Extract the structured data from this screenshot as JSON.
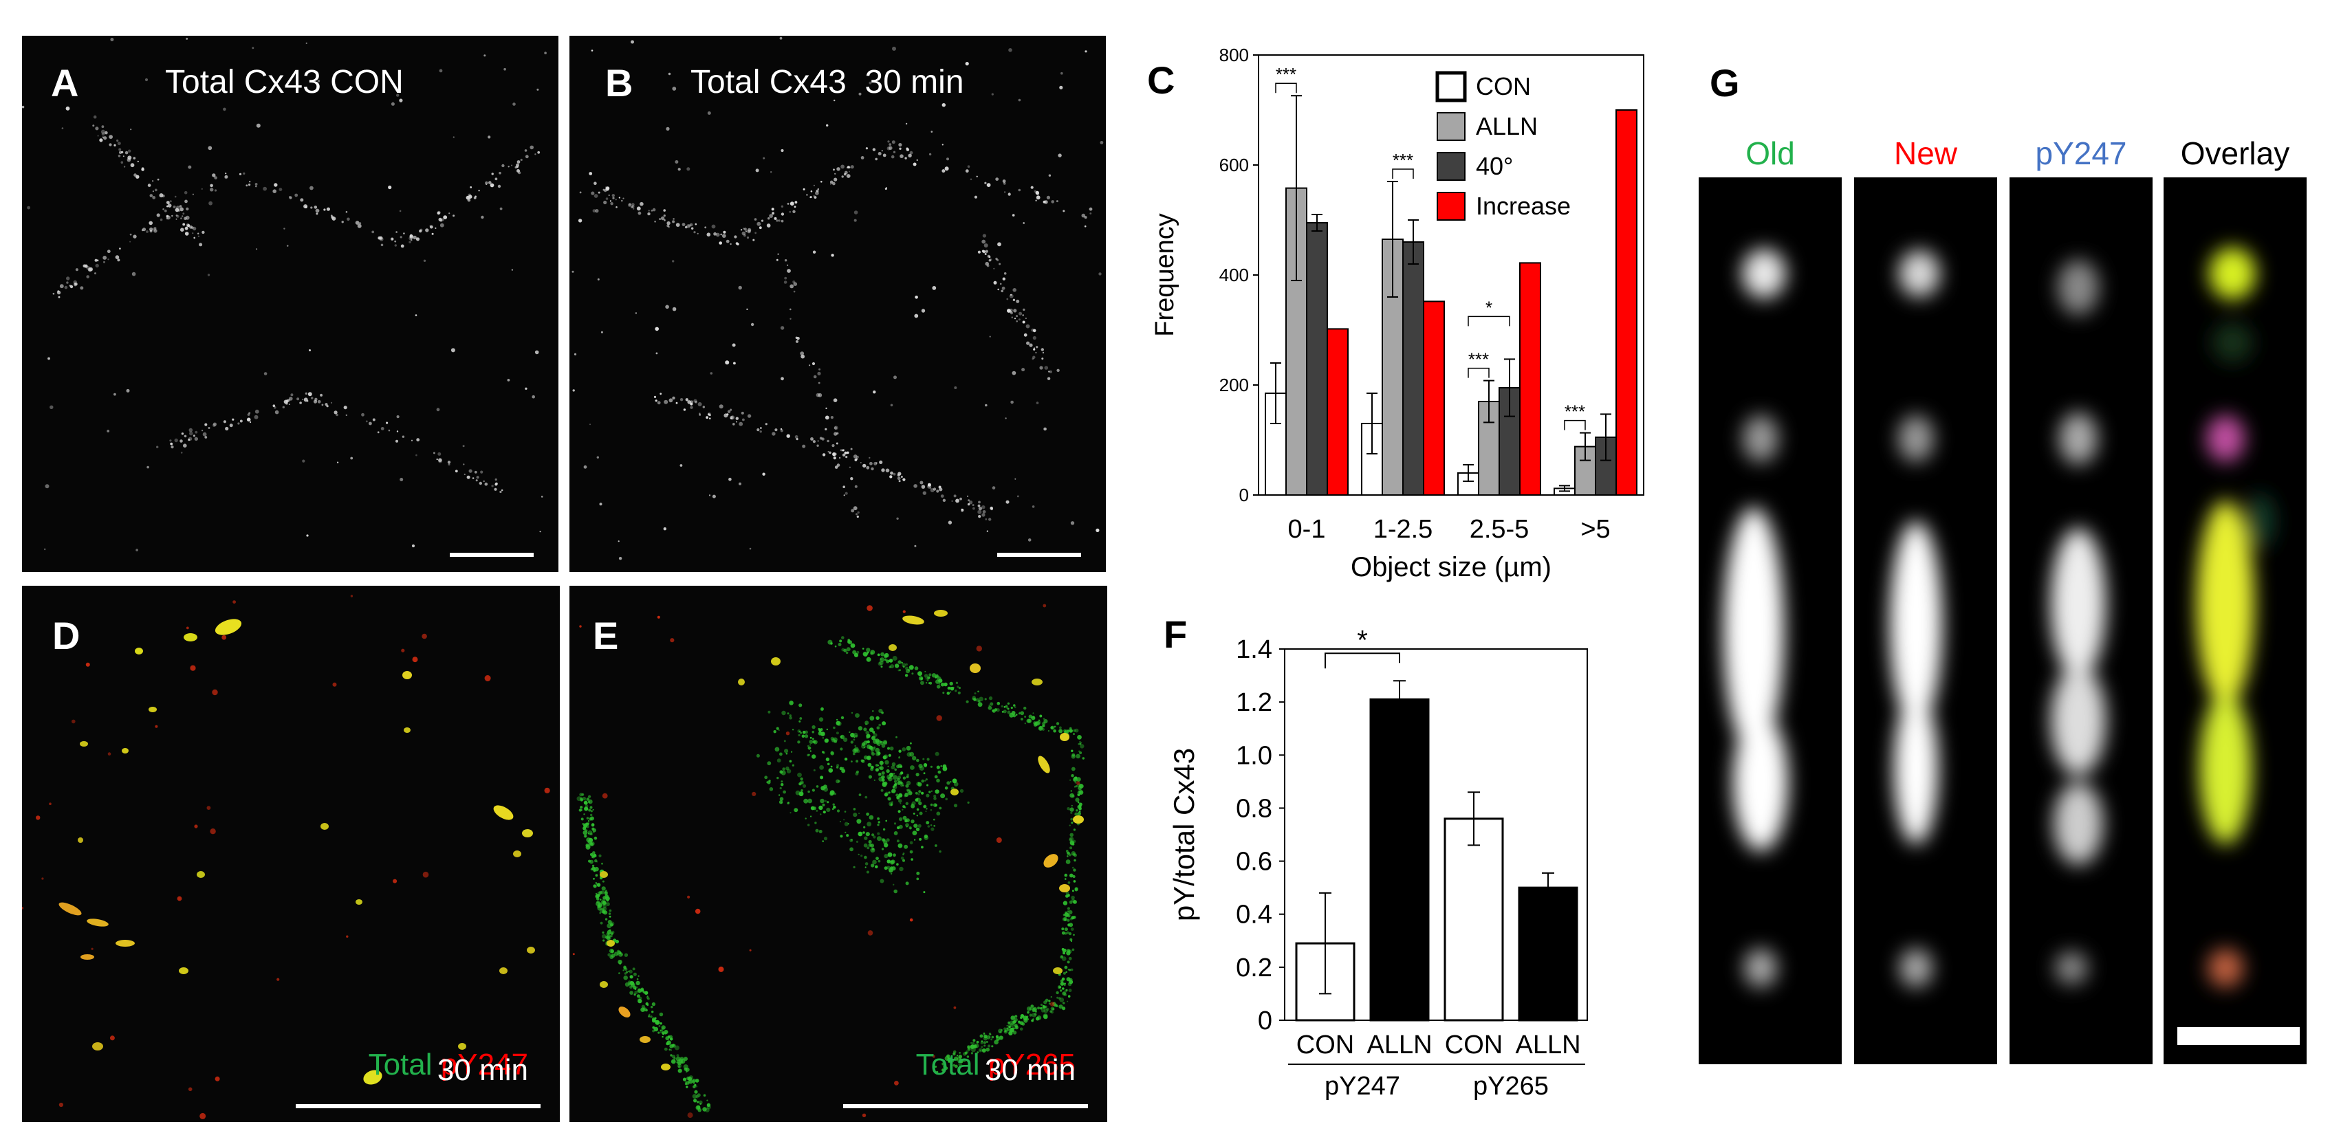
{
  "panels": {
    "A": {
      "letter": "A",
      "title": "Total Cx43 CON"
    },
    "B": {
      "letter": "B",
      "title": "Total Cx43  30 min"
    },
    "D": {
      "letter": "D",
      "caption_green": "Total",
      "caption_red": "pY247",
      "caption_time": "30 min"
    },
    "E": {
      "letter": "E",
      "caption_green": "Total",
      "caption_red": "pY265",
      "caption_time": "30 min"
    },
    "C": {
      "letter": "C"
    },
    "F": {
      "letter": "F"
    },
    "G": {
      "letter": "G",
      "labels": [
        "Old",
        "New",
        "pY247",
        "Overlay"
      ]
    }
  },
  "colors": {
    "green": "#22b14c",
    "red": "#ff0000",
    "blue": "#4472c4",
    "yellow": "#ffff00"
  },
  "chart_data": [
    {
      "type": "bar",
      "panel": "C",
      "categories": [
        "0-1",
        "1-2.5",
        "2.5-5",
        ">5"
      ],
      "series": [
        {
          "name": "CON",
          "values": [
            185,
            130,
            40,
            12
          ],
          "errors": [
            55,
            55,
            15,
            5
          ],
          "color": "#ffffff"
        },
        {
          "name": "ALLN",
          "values": [
            558,
            465,
            170,
            88
          ],
          "errors": [
            168,
            105,
            38,
            25
          ],
          "color": "#a6a6a6"
        },
        {
          "name": "40°",
          "values": [
            495,
            460,
            195,
            105
          ],
          "errors": [
            15,
            40,
            52,
            42
          ],
          "color": "#404040"
        },
        {
          "name": "Increase",
          "values": [
            302,
            352,
            422,
            700
          ],
          "color": "#ff0000"
        }
      ],
      "xlabel": "Object size (µm)",
      "ylabel": "Frequency",
      "ylim": [
        0,
        800
      ],
      "yticks": [
        0,
        200,
        400,
        600,
        800
      ],
      "significance": [
        {
          "category": 0,
          "from": "CON",
          "to": "ALLN",
          "label": "***"
        },
        {
          "category": 1,
          "from": "ALLN",
          "to": "40°",
          "label": "***"
        },
        {
          "category": 2,
          "from": "CON",
          "to": "ALLN",
          "label": "***"
        },
        {
          "category": 2,
          "from": "CON",
          "to": "40°",
          "label": "*"
        },
        {
          "category": 3,
          "from": "CON",
          "to": "ALLN",
          "label": "***"
        }
      ],
      "legend": "top-right",
      "grid": false
    },
    {
      "type": "bar",
      "panel": "F",
      "categories": [
        "CON",
        "ALLN",
        "CON",
        "ALLN"
      ],
      "groups": [
        {
          "name": "pY247",
          "indices": [
            0,
            1
          ]
        },
        {
          "name": "pY265",
          "indices": [
            2,
            3
          ]
        }
      ],
      "values": [
        0.29,
        1.21,
        0.76,
        0.5
      ],
      "errors": [
        0.19,
        0.07,
        0.1,
        0.055
      ],
      "colors": [
        "#ffffff",
        "#000000",
        "#ffffff",
        "#000000"
      ],
      "ylabel": "pY/total Cx43",
      "ylim": [
        0,
        1.4
      ],
      "yticks": [
        "0",
        "0.2",
        "0.4",
        "0.6",
        "0.8",
        "1.0",
        "1.2",
        "1.4"
      ],
      "significance": [
        {
          "from": 0,
          "to": 1,
          "label": "*"
        }
      ],
      "grid": false
    }
  ]
}
